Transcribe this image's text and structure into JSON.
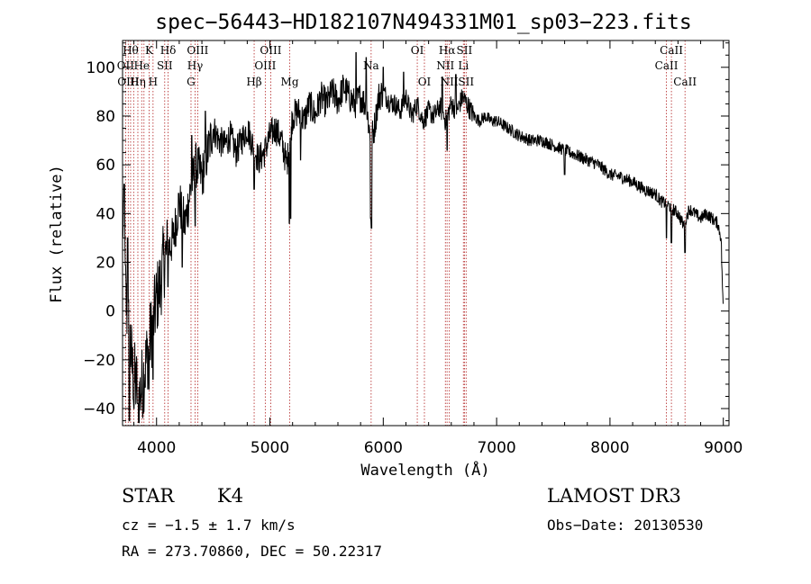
{
  "chart_data": {
    "type": "line",
    "title": "spec−56443−HD182107N494331M01_sp03−223.fits",
    "xlabel": "Wavelength (Å)",
    "ylabel": "Flux (relative)",
    "xlim": [
      3700,
      9050
    ],
    "ylim": [
      -47,
      111
    ],
    "xticks": [
      4000,
      5000,
      6000,
      7000,
      8000,
      9000
    ],
    "yticks": [
      -40,
      -20,
      0,
      20,
      40,
      60,
      80,
      100
    ],
    "ytick_labels": [
      "−40",
      "−20",
      "0",
      "20",
      "40",
      "60",
      "80",
      "100"
    ],
    "spectrum": {
      "name": "flux",
      "x": [
        3700,
        3730,
        3760,
        3790,
        3820,
        3850,
        3880,
        3910,
        3940,
        3970,
        4000,
        4030,
        4060,
        4100,
        4150,
        4200,
        4250,
        4300,
        4350,
        4400,
        4450,
        4500,
        4550,
        4600,
        4650,
        4700,
        4750,
        4800,
        4850,
        4900,
        4950,
        5000,
        5050,
        5100,
        5150,
        5200,
        5250,
        5300,
        5350,
        5400,
        5450,
        5500,
        5550,
        5600,
        5650,
        5700,
        5750,
        5800,
        5850,
        5890,
        5920,
        5960,
        6000,
        6050,
        6100,
        6150,
        6200,
        6250,
        6300,
        6350,
        6400,
        6450,
        6500,
        6550,
        6600,
        6650,
        6700,
        6750,
        6800,
        6850,
        6900,
        6950,
        7000,
        7100,
        7200,
        7300,
        7400,
        7500,
        7600,
        7700,
        7800,
        7900,
        8000,
        8100,
        8200,
        8300,
        8400,
        8450,
        8500,
        8550,
        8600,
        8650,
        8700,
        8750,
        8800,
        8850,
        8900,
        8950,
        8980,
        9000
      ],
      "y": [
        40,
        5,
        -10,
        -25,
        -30,
        -35,
        -28,
        -20,
        -12,
        -5,
        5,
        10,
        20,
        25,
        30,
        45,
        35,
        50,
        60,
        55,
        65,
        75,
        70,
        68,
        72,
        65,
        70,
        75,
        68,
        62,
        65,
        72,
        75,
        70,
        60,
        80,
        82,
        78,
        85,
        80,
        88,
        85,
        90,
        86,
        92,
        88,
        85,
        88,
        84,
        70,
        75,
        88,
        90,
        86,
        85,
        82,
        88,
        80,
        85,
        78,
        82,
        80,
        84,
        78,
        85,
        82,
        88,
        84,
        80,
        78,
        80,
        78,
        78,
        75,
        72,
        70,
        70,
        68,
        66,
        64,
        62,
        60,
        56,
        55,
        53,
        50,
        48,
        45,
        44,
        42,
        40,
        35,
        42,
        40,
        38,
        40,
        38,
        36,
        30,
        -2
      ]
    },
    "dips": [
      {
        "x": 3760,
        "y": -45
      },
      {
        "x": 3800,
        "y": -40
      },
      {
        "x": 3835,
        "y": -38
      },
      {
        "x": 3880,
        "y": -42
      },
      {
        "x": 3933,
        "y": -32
      },
      {
        "x": 3968,
        "y": -28
      },
      {
        "x": 4101,
        "y": 10
      },
      {
        "x": 4226,
        "y": 18
      },
      {
        "x": 4340,
        "y": 35
      },
      {
        "x": 4861,
        "y": 50
      },
      {
        "x": 5172,
        "y": 36
      },
      {
        "x": 5183,
        "y": 38
      },
      {
        "x": 5270,
        "y": 62
      },
      {
        "x": 5890,
        "y": 38
      },
      {
        "x": 5896,
        "y": 34
      },
      {
        "x": 6563,
        "y": 66
      },
      {
        "x": 7600,
        "y": 56
      },
      {
        "x": 8498,
        "y": 30
      },
      {
        "x": 8542,
        "y": 28
      },
      {
        "x": 8662,
        "y": 24
      }
    ],
    "spikes": [
      {
        "x": 3715,
        "y": 52
      },
      {
        "x": 3745,
        "y": 30
      },
      {
        "x": 4310,
        "y": 72
      },
      {
        "x": 4430,
        "y": 82
      },
      {
        "x": 5760,
        "y": 106
      },
      {
        "x": 5850,
        "y": 104
      },
      {
        "x": 6000,
        "y": 100
      },
      {
        "x": 6180,
        "y": 98
      },
      {
        "x": 6520,
        "y": 96
      },
      {
        "x": 6640,
        "y": 97
      }
    ],
    "reference_lines": [
      {
        "x": 3727,
        "label": "OII",
        "row": 1
      },
      {
        "x": 3750,
        "label": "OIII",
        "row": 2
      },
      {
        "x": 3771,
        "label": "Hθ",
        "row": 0
      },
      {
        "x": 3798,
        "label": "",
        "row": 0
      },
      {
        "x": 3835,
        "label": "Hη",
        "row": 2
      },
      {
        "x": 3869,
        "label": "He",
        "row": 1
      },
      {
        "x": 3889,
        "label": "",
        "row": 0
      },
      {
        "x": 3934,
        "label": "K",
        "row": 0
      },
      {
        "x": 3969,
        "label": "H",
        "row": 2
      },
      {
        "x": 4072,
        "label": "SII",
        "row": 1
      },
      {
        "x": 4102,
        "label": "Hδ",
        "row": 0
      },
      {
        "x": 4304,
        "label": "G",
        "row": 2
      },
      {
        "x": 4340,
        "label": "Hγ",
        "row": 1
      },
      {
        "x": 4363,
        "label": "OIII",
        "row": 0
      },
      {
        "x": 4861,
        "label": "Hβ",
        "row": 2
      },
      {
        "x": 4959,
        "label": "OIII",
        "row": 1
      },
      {
        "x": 5007,
        "label": "OIII",
        "row": 0
      },
      {
        "x": 5175,
        "label": "Mg",
        "row": 2
      },
      {
        "x": 5893,
        "label": "Na",
        "row": 1
      },
      {
        "x": 6300,
        "label": "OI",
        "row": 0
      },
      {
        "x": 6363,
        "label": "OI",
        "row": 2
      },
      {
        "x": 6548,
        "label": "NII",
        "row": 1
      },
      {
        "x": 6563,
        "label": "Hα",
        "row": 0
      },
      {
        "x": 6583,
        "label": "NII",
        "row": 2
      },
      {
        "x": 6707,
        "label": "Li",
        "row": 1
      },
      {
        "x": 6716,
        "label": "SII",
        "row": 0
      },
      {
        "x": 6731,
        "label": "SII",
        "row": 2
      },
      {
        "x": 8498,
        "label": "CaII",
        "row": 1
      },
      {
        "x": 8542,
        "label": "CaII",
        "row": 0
      },
      {
        "x": 8662,
        "label": "CaII",
        "row": 2
      }
    ]
  },
  "info": {
    "object_class": "STAR",
    "subclass": "K4",
    "survey": "LAMOST DR3",
    "redshift": "cz = −1.5 ± 1.7 km/s",
    "obs_date": "Obs−Date: 20130530",
    "coordinates": "RA = 273.70860, DEC =  50.22317"
  },
  "colors": {
    "axis": "#000000",
    "spectrum": "#000000",
    "reference_line": "#b22222"
  }
}
